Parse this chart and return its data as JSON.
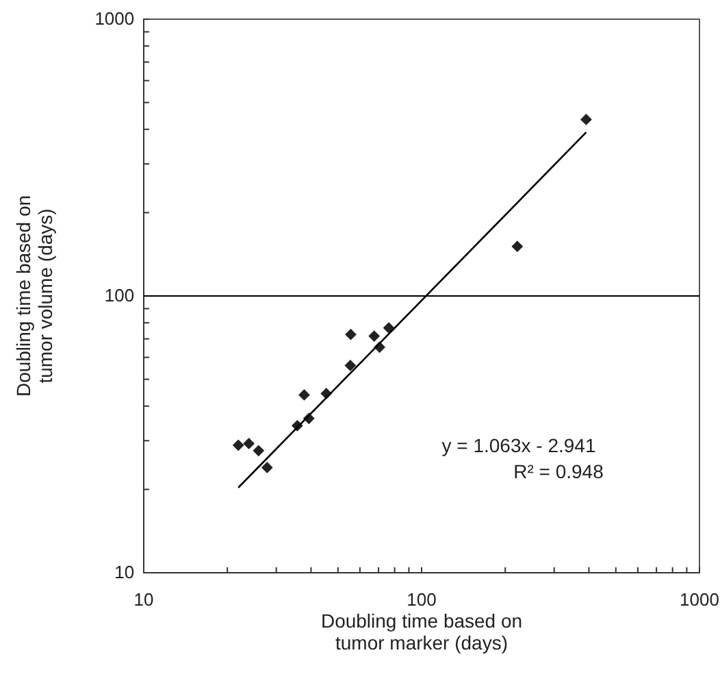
{
  "chart_data": {
    "type": "scatter",
    "xlabel": "Doubling time based on\ntumor marker (days)",
    "ylabel": "Doubling time based on\ntumor volume (days)",
    "log": "xy",
    "xlim": [
      10,
      1000
    ],
    "ylim": [
      10,
      1000
    ],
    "xticks": [
      10,
      {
        "value": 20,
        "label": null
      },
      {
        "value": 30,
        "label": null
      },
      {
        "value": 40,
        "label": null
      },
      {
        "value": 50,
        "label": null
      },
      {
        "value": 60,
        "label": null
      },
      {
        "value": 70,
        "label": null
      },
      {
        "value": 80,
        "label": null
      },
      {
        "value": 90,
        "label": null
      },
      100,
      {
        "value": 200,
        "label": null
      },
      {
        "value": 300,
        "label": null
      },
      {
        "value": 400,
        "label": null
      },
      {
        "value": 500,
        "label": null
      },
      {
        "value": 600,
        "label": null
      },
      {
        "value": 700,
        "label": null
      },
      {
        "value": 800,
        "label": null
      },
      {
        "value": 900,
        "label": null
      },
      1000
    ],
    "yticks": [
      10,
      {
        "value": 20,
        "label": null
      },
      {
        "value": 30,
        "label": null
      },
      {
        "value": 40,
        "label": null
      },
      {
        "value": 50,
        "label": null
      },
      {
        "value": 60,
        "label": null
      },
      {
        "value": 70,
        "label": null
      },
      {
        "value": 80,
        "label": null
      },
      {
        "value": 90,
        "label": null
      },
      100,
      {
        "value": 200,
        "label": null
      },
      {
        "value": 300,
        "label": null
      },
      {
        "value": 400,
        "label": null
      },
      {
        "value": 500,
        "label": null
      },
      {
        "value": 600,
        "label": null
      },
      {
        "value": 700,
        "label": null
      },
      {
        "value": 800,
        "label": null
      },
      {
        "value": 900,
        "label": null
      },
      1000
    ],
    "grid": false,
    "ref_lines": [
      {
        "axis": "y",
        "value": 100,
        "color": "#000000"
      }
    ],
    "series": [
      {
        "marker": "diamond",
        "color": "#222222",
        "x": [
          21.9,
          23.9,
          25.9,
          27.8,
          35.7,
          37.8,
          39.3,
          45.4,
          55.4,
          55.6,
          67.5,
          70.6,
          76.2,
          221,
          391
        ],
        "values": [
          28.9,
          29.3,
          27.6,
          24.0,
          34.0,
          43.9,
          36.1,
          44.4,
          56.1,
          72.6,
          71.6,
          65.3,
          76.7,
          151,
          434
        ]
      },
      {
        "type": "line",
        "color": "#000000",
        "x": [
          21.9,
          391
        ],
        "values": [
          20.3,
          390
        ]
      }
    ],
    "annotations": [
      "y = 1.063x - 2.941",
      "R² = 0.948"
    ]
  }
}
